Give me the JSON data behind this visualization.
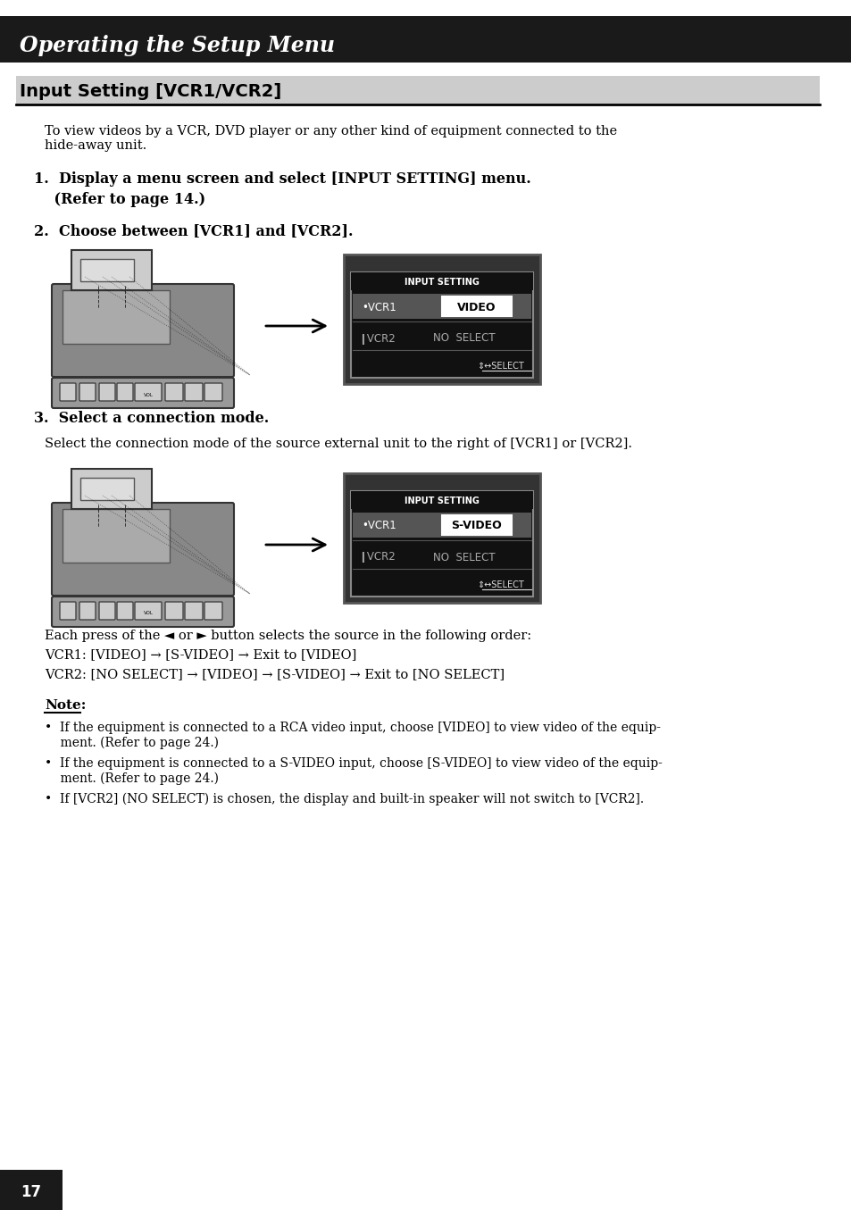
{
  "page_bg": "#ffffff",
  "header_bg": "#1a1a1a",
  "header_text": "Operating the Setup Menu",
  "section_title": "Input Setting [VCR1/VCR2]",
  "section_title_bg": "#d0d0d0",
  "section_title_underline": "#000000",
  "intro_text": "To view videos by a VCR, DVD player or any other kind of equipment connected to the\nhide-away unit.",
  "step1_bold": "1.  Display a menu screen and select [INPUT SETTING] menu.",
  "step1_normal": "    (Refer to page 14.)",
  "step2_bold": "2.  Choose between [VCR1] and [VCR2].",
  "step3_bold": "3.  Select a connection mode.",
  "step3_normal": "Select the connection mode of the source external unit to the right of [VCR1] or [VCR2].",
  "flow_text1": "Each press of the ◄ or ► button selects the source in the following order:",
  "flow_text2": "VCR1: [VIDEO] → [S-VIDEO] → Exit to [VIDEO]",
  "flow_text3": "VCR2: [NO SELECT] → [VIDEO] → [S-VIDEO] → Exit to [NO SELECT]",
  "note_title": "Note:",
  "note1": "•  If the equipment is connected to a RCA video input, choose [VIDEO] to view video of the equip-\n    ment. (Refer to page 24.)",
  "note2": "•  If the equipment is connected to a S-VIDEO input, choose [S-VIDEO] to view video of the equip-\n    ment. (Refer to page 24.)",
  "note3": "•  If [VCR2] (NO SELECT) is chosen, the display and built-in speaker will not switch to [VCR2].",
  "page_number": "17",
  "screen1_title": "INPUT SETTING",
  "screen1_vcr1": "•VCR1",
  "screen1_vcr1_val": "VIDEO",
  "screen1_vcr2": "VCR2",
  "screen1_vcr2_val": "NO  SELECT",
  "screen1_nav": "⇕↔SELECT",
  "screen2_title": "INPUT SETTING",
  "screen2_vcr1": "•VCR1",
  "screen2_vcr1_val": "S-VIDEO",
  "screen2_vcr2": "VCR2",
  "screen2_vcr2_val": "NO  SELECT",
  "screen2_nav": "⇕↔SELECT"
}
